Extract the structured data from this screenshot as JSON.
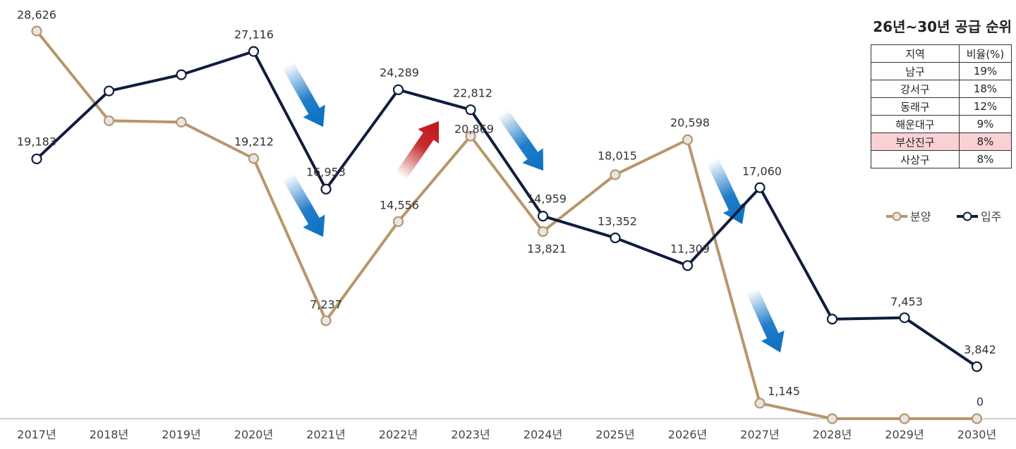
{
  "chart_data": {
    "type": "line",
    "categories": [
      "2017년",
      "2018년",
      "2019년",
      "2020년",
      "2021년",
      "2022년",
      "2023년",
      "2024년",
      "2025년",
      "2026년",
      "2027년",
      "2028년",
      "2029년",
      "2030년"
    ],
    "series": [
      {
        "name": "분양",
        "color": "#b8966b",
        "values": [
          28626,
          22000,
          21900,
          19212,
          7237,
          14556,
          20869,
          13821,
          18015,
          20598,
          1145,
          0,
          0,
          0
        ],
        "labels": [
          "28,626",
          "",
          "",
          "19,212",
          "7,237",
          "14,556",
          "20,869",
          "13,821",
          "18,015",
          "20,598",
          "1,145",
          "",
          "",
          "0"
        ]
      },
      {
        "name": "입주",
        "color": "#0f1d3c",
        "values": [
          19183,
          24200,
          25400,
          27116,
          16953,
          24289,
          22812,
          14959,
          13352,
          11309,
          17060,
          7353,
          7453,
          3842
        ],
        "labels": [
          "19,183",
          "",
          "",
          "27,116",
          "16,953",
          "24,289",
          "22,812",
          "14,959",
          "13,352",
          "11,309",
          "17,060",
          "",
          "7,453",
          "3,842"
        ]
      }
    ],
    "ylim": [
      0,
      31000
    ],
    "grid": false,
    "legend_position": "right",
    "trend_arrows": [
      {
        "direction": "down",
        "color": "#0a6fc2"
      },
      {
        "direction": "down",
        "color": "#0a6fc2"
      },
      {
        "direction": "up",
        "color": "#c0151a"
      },
      {
        "direction": "down",
        "color": "#0a6fc2"
      },
      {
        "direction": "down",
        "color": "#0a6fc2"
      },
      {
        "direction": "down",
        "color": "#0a6fc2"
      }
    ]
  },
  "ranking": {
    "title": "26년~30년 공급 순위",
    "header": [
      "지역",
      "비율(%)"
    ],
    "rows": [
      {
        "region": "남구",
        "ratio": "19%"
      },
      {
        "region": "강서구",
        "ratio": "18%"
      },
      {
        "region": "동래구",
        "ratio": "12%"
      },
      {
        "region": "해운대구",
        "ratio": "9%"
      },
      {
        "region": "부산진구",
        "ratio": "8%",
        "highlight": true
      },
      {
        "region": "사상구",
        "ratio": "8%"
      }
    ],
    "highlight_color": "#f9d0d4"
  }
}
